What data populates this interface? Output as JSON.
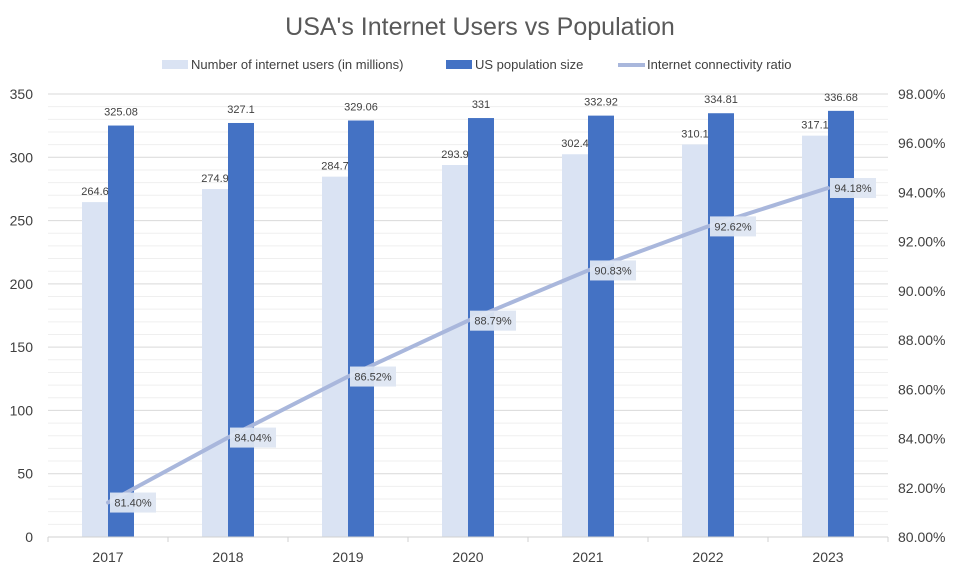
{
  "chart_data": {
    "type": "bar",
    "title": "USA's Internet Users vs Population",
    "xlabel": "",
    "ylabel": "",
    "categories": [
      "2017",
      "2018",
      "2019",
      "2020",
      "2021",
      "2022",
      "2023"
    ],
    "series": [
      {
        "name": "Number of internet users (in millions)",
        "type": "bar",
        "axis": "left",
        "color": "#DAE3F3",
        "values": [
          264.6,
          274.9,
          284.7,
          293.9,
          302.4,
          310.1,
          317.1
        ],
        "labels": [
          "264.6",
          "274.9",
          "284.7",
          "293.9",
          "302.4",
          "310.1",
          "317.1"
        ]
      },
      {
        "name": "US population size",
        "type": "bar",
        "axis": "left",
        "color": "#4472C4",
        "values": [
          325.08,
          327.1,
          329.06,
          331,
          332.92,
          334.81,
          336.68
        ],
        "labels": [
          "325.08",
          "327.1",
          "329.06",
          "331",
          "332.92",
          "334.81",
          "336.68"
        ]
      },
      {
        "name": "Internet connectivity ratio",
        "type": "line",
        "axis": "right",
        "color": "#A9B7DC",
        "values": [
          81.4,
          84.04,
          86.52,
          88.79,
          90.83,
          92.62,
          94.18
        ],
        "labels": [
          "81.40%",
          "84.04%",
          "86.52%",
          "88.79%",
          "90.83%",
          "92.62%",
          "94.18%"
        ]
      }
    ],
    "ylim": [
      0,
      350
    ],
    "y_ticks": [
      "0",
      "50",
      "100",
      "150",
      "200",
      "250",
      "300",
      "350"
    ],
    "y_tick_values": [
      0,
      50,
      100,
      150,
      200,
      250,
      300,
      350
    ],
    "y2lim": [
      80,
      98
    ],
    "y2_ticks": [
      "80.00%",
      "82.00%",
      "84.00%",
      "86.00%",
      "88.00%",
      "90.00%",
      "92.00%",
      "94.00%",
      "96.00%",
      "98.00%"
    ],
    "y2_tick_values": [
      80,
      82,
      84,
      86,
      88,
      90,
      92,
      94,
      96,
      98
    ],
    "grid": true,
    "legend_position": "top"
  }
}
